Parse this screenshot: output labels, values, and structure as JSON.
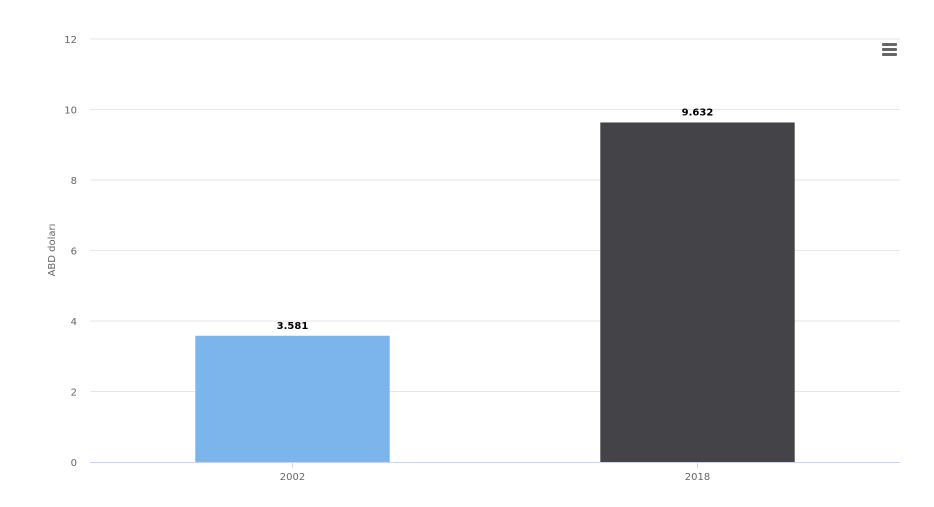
{
  "chart_data": {
    "type": "bar",
    "categories": [
      "2002",
      "2018"
    ],
    "values": [
      3.581,
      9.632
    ],
    "value_labels": [
      "3.581",
      "9.632"
    ],
    "bar_colors": [
      "#7cb5ec",
      "#434348"
    ],
    "ylabel": "ABD doları",
    "ylim": [
      0,
      12
    ],
    "yticks": [
      "0",
      "2",
      "4",
      "6",
      "8",
      "10",
      "12"
    ],
    "grid": true
  },
  "toolbar": {
    "menu_icon": "hamburger-menu-icon"
  }
}
